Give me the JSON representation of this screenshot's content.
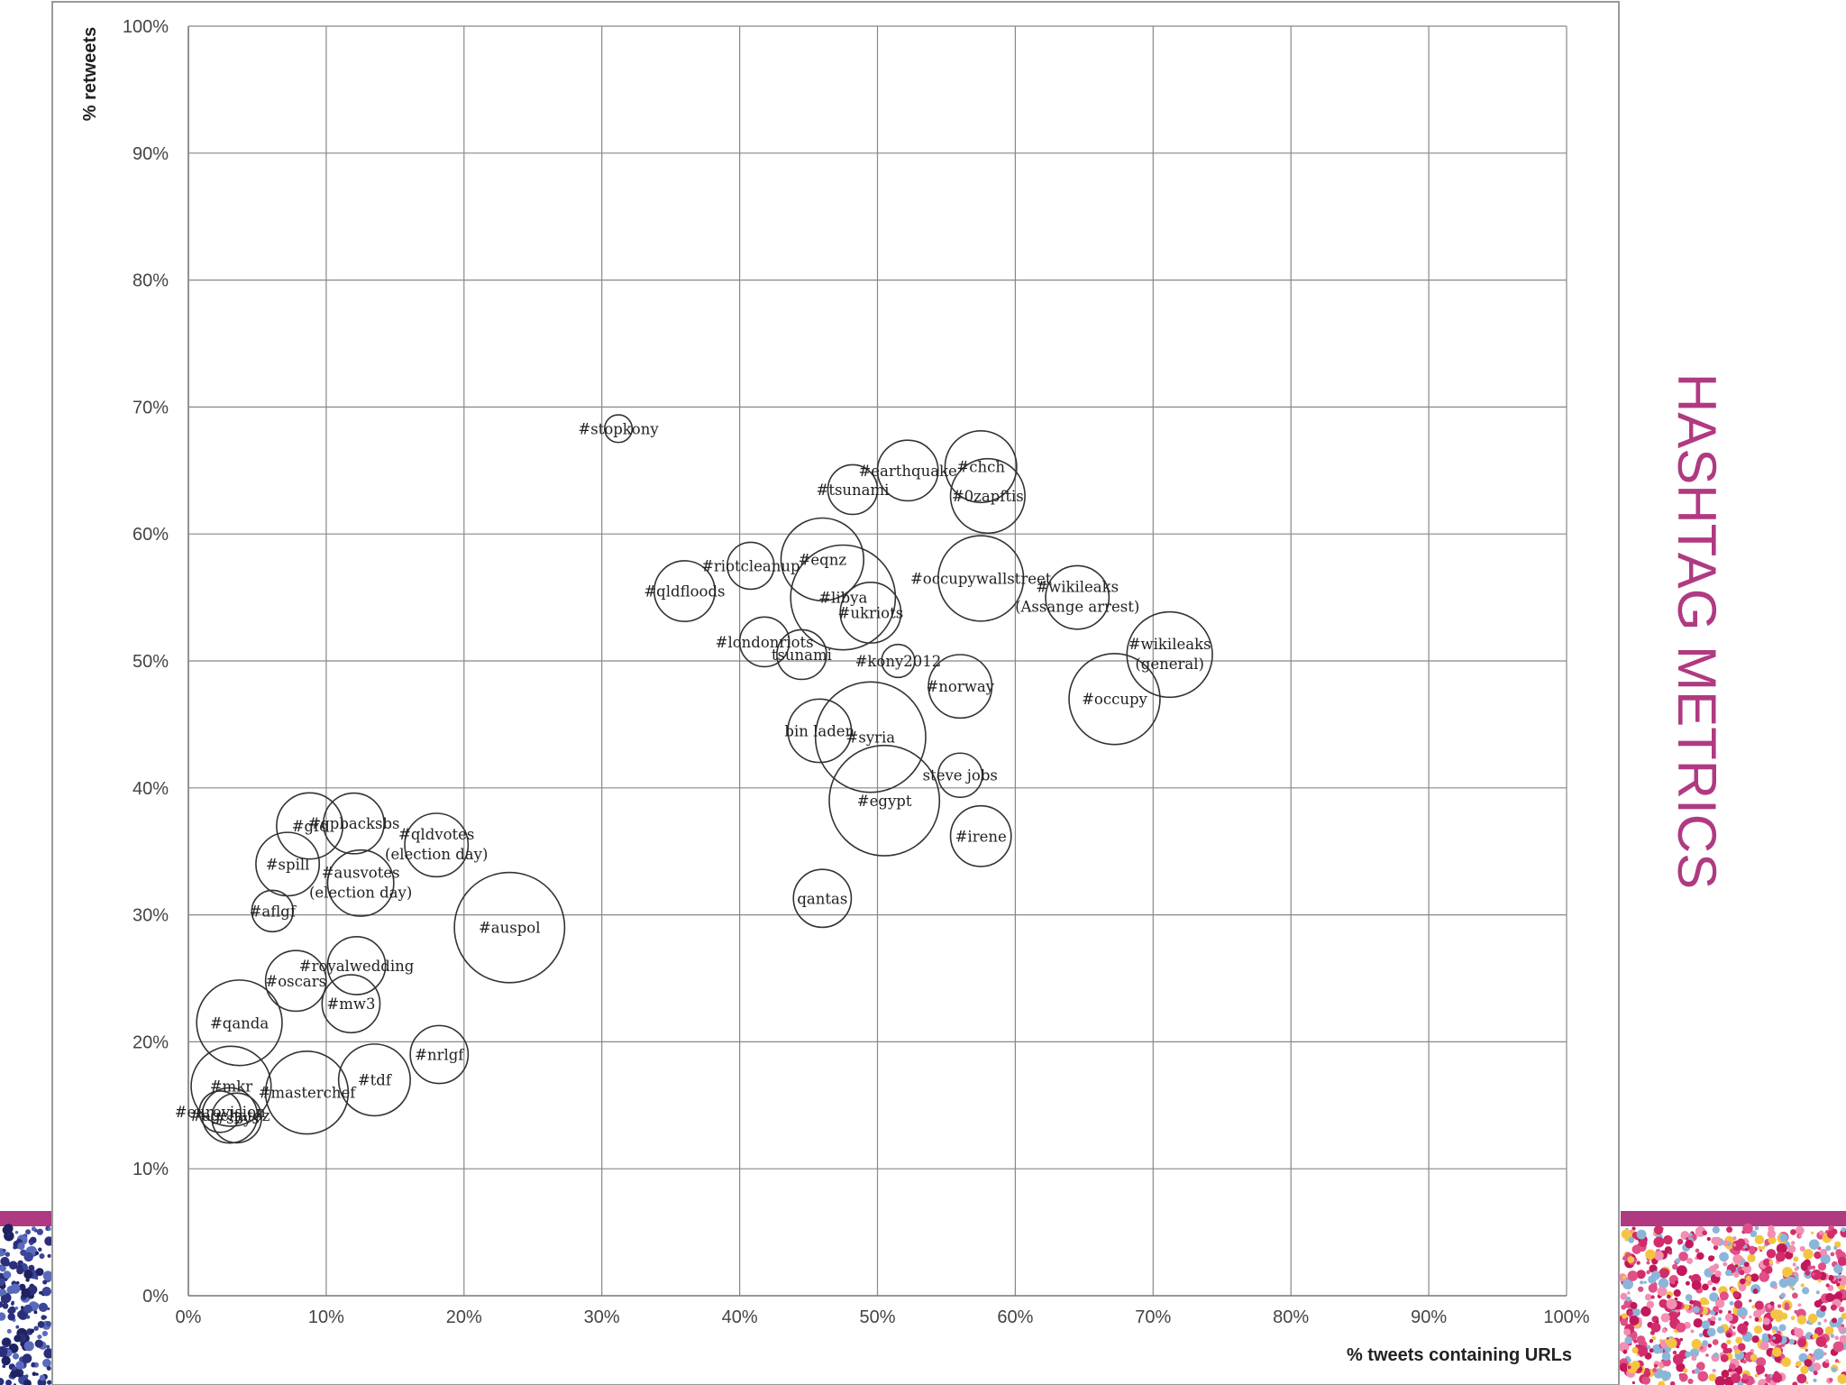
{
  "slide": {
    "title": "HASHTAG METRICS",
    "accent_color": "#b03a82",
    "dot_colors_left": [
      "#2b2f7a",
      "#3b4699",
      "#5a6bbd",
      "#1e2260"
    ],
    "dot_colors_right": [
      "#c2185b",
      "#e04f88",
      "#f28fb3",
      "#d12c6c",
      "#8bb6d9",
      "#f5c542"
    ]
  },
  "chart_data": {
    "type": "scatter",
    "variant": "bubble",
    "title": "",
    "xlabel": "% tweets containing URLs",
    "ylabel": "% retweets",
    "xlim": [
      0,
      100
    ],
    "ylim": [
      0,
      100
    ],
    "x_ticks": [
      "0%",
      "10%",
      "20%",
      "30%",
      "40%",
      "50%",
      "60%",
      "70%",
      "80%",
      "90%",
      "100%"
    ],
    "y_ticks": [
      "0%",
      "10%",
      "20%",
      "30%",
      "40%",
      "50%",
      "60%",
      "70%",
      "80%",
      "90%",
      "100%"
    ],
    "grid": true,
    "points": [
      {
        "label": "#stopkony",
        "x": 31.2,
        "y": 68.3,
        "r": 1.0
      },
      {
        "label": "#earthquake",
        "x": 52.2,
        "y": 65.0,
        "r": 2.2
      },
      {
        "label": "#chch",
        "x": 57.5,
        "y": 65.3,
        "r": 2.6
      },
      {
        "label": "#tsunami",
        "x": 48.2,
        "y": 63.5,
        "r": 1.8
      },
      {
        "label": "#0zapftis",
        "x": 58.0,
        "y": 63.0,
        "r": 2.7
      },
      {
        "label": "#riotcleanup",
        "x": 40.8,
        "y": 57.5,
        "r": 1.7
      },
      {
        "label": "#eqnz",
        "x": 46.0,
        "y": 58.0,
        "r": 3.0
      },
      {
        "label": "#qldfloods",
        "x": 36.0,
        "y": 55.5,
        "r": 2.2
      },
      {
        "label": "#libya",
        "x": 47.5,
        "y": 55.0,
        "r": 3.8
      },
      {
        "label": "#occupywallstreet",
        "x": 57.5,
        "y": 56.5,
        "r": 3.1
      },
      {
        "label": "#wikileaks",
        "label2": "(Assange arrest)",
        "x": 64.5,
        "y": 55.0,
        "r": 2.3
      },
      {
        "label": "#ukriots",
        "x": 49.5,
        "y": 53.8,
        "r": 2.2
      },
      {
        "label": "#londonriots",
        "x": 41.8,
        "y": 51.5,
        "r": 1.8
      },
      {
        "label": "tsunami",
        "x": 44.5,
        "y": 50.5,
        "r": 1.8
      },
      {
        "label": "#kony2012",
        "x": 51.5,
        "y": 50.0,
        "r": 1.2
      },
      {
        "label": "#wikileaks",
        "label2": "(general)",
        "x": 71.2,
        "y": 50.5,
        "r": 3.1
      },
      {
        "label": "#norway",
        "x": 56.0,
        "y": 48.0,
        "r": 2.3
      },
      {
        "label": "#occupy",
        "x": 67.2,
        "y": 47.0,
        "r": 3.3
      },
      {
        "label": "bin laden",
        "x": 45.8,
        "y": 44.5,
        "r": 2.3
      },
      {
        "label": "#syria",
        "x": 49.5,
        "y": 44.0,
        "r": 4.0
      },
      {
        "label": "steve jobs",
        "x": 56.0,
        "y": 41.0,
        "r": 1.6
      },
      {
        "label": "#egypt",
        "x": 50.5,
        "y": 39.0,
        "r": 4.0
      },
      {
        "label": "#irene",
        "x": 57.5,
        "y": 36.2,
        "r": 2.2
      },
      {
        "label": "qantas",
        "x": 46.0,
        "y": 31.3,
        "r": 2.1
      },
      {
        "label": "#gfc",
        "x": 8.8,
        "y": 37.0,
        "r": 2.4
      },
      {
        "label": "#qpbacksbs",
        "x": 12.0,
        "y": 37.2,
        "r": 2.2
      },
      {
        "label": "#spill",
        "x": 7.2,
        "y": 34.0,
        "r": 2.3
      },
      {
        "label": "#qldvotes",
        "label2": "(election day)",
        "x": 18.0,
        "y": 35.5,
        "r": 2.3
      },
      {
        "label": "#ausvotes",
        "label2": "(election day)",
        "x": 12.5,
        "y": 32.5,
        "r": 2.4
      },
      {
        "label": "#aflgf",
        "x": 6.1,
        "y": 30.3,
        "r": 1.5
      },
      {
        "label": "#auspol",
        "x": 23.3,
        "y": 29.0,
        "r": 4.0
      },
      {
        "label": "#royalwedding",
        "x": 12.2,
        "y": 26.0,
        "r": 2.1
      },
      {
        "label": "#oscars",
        "x": 7.8,
        "y": 24.8,
        "r": 2.2
      },
      {
        "label": "#mw3",
        "x": 11.8,
        "y": 23.0,
        "r": 2.1
      },
      {
        "label": "#qanda",
        "x": 3.7,
        "y": 21.5,
        "r": 3.1
      },
      {
        "label": "#nrlgf",
        "x": 18.2,
        "y": 19.0,
        "r": 2.1
      },
      {
        "label": "#tdf",
        "x": 13.5,
        "y": 17.0,
        "r": 2.6
      },
      {
        "label": "#mkr",
        "x": 3.1,
        "y": 16.5,
        "r": 2.9
      },
      {
        "label": "#masterchef",
        "x": 8.6,
        "y": 16.0,
        "r": 3.0
      },
      {
        "label": "#eurovision",
        "x": 2.3,
        "y": 14.5,
        "r": 1.5
      },
      {
        "label": "#agchatoz",
        "x": 3.0,
        "y": 14.2,
        "r": 2.0
      },
      {
        "label": "#sbys",
        "x": 3.5,
        "y": 14.0,
        "r": 1.8
      }
    ]
  }
}
